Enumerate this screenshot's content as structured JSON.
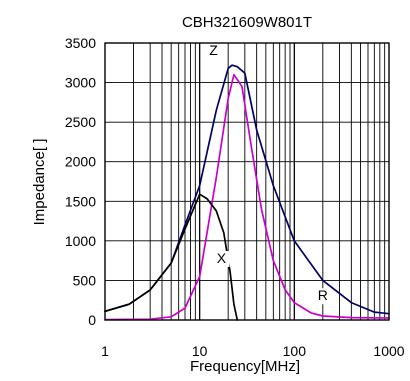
{
  "chart_data": {
    "type": "line",
    "title": "CBH321609W801T",
    "xlabel": "Frequency[MHz]",
    "ylabel": "Impedance[ ]",
    "x_scale": "log",
    "xlim": [
      1,
      1000
    ],
    "ylim": [
      0,
      3500
    ],
    "x_ticks": [
      1,
      10,
      100,
      1000
    ],
    "x_tick_labels": [
      "1",
      "10",
      "100",
      "1000"
    ],
    "y_ticks": [
      0,
      500,
      1000,
      1500,
      2000,
      2500,
      3000,
      3500
    ],
    "y_tick_labels": [
      "0",
      "500",
      "1000",
      "1500",
      "2000",
      "2500",
      "3000",
      "3500"
    ],
    "grid": "vertical log decades, horizontal at y ticks",
    "series": [
      {
        "name": "Z",
        "color": "#000066",
        "x": [
          1,
          1.8,
          3,
          5,
          7,
          10,
          15,
          20,
          22,
          25,
          30,
          40,
          60,
          100,
          200,
          400,
          700,
          1000
        ],
        "y": [
          110,
          200,
          380,
          720,
          1200,
          1700,
          2650,
          3180,
          3220,
          3200,
          3120,
          2400,
          1700,
          1000,
          500,
          220,
          100,
          80
        ]
      },
      {
        "name": "R",
        "color": "#CC00CC",
        "x": [
          1,
          3,
          5,
          7,
          10,
          15,
          20,
          23,
          28,
          35,
          45,
          60,
          80,
          100,
          150,
          200,
          400,
          1000
        ],
        "y": [
          5,
          10,
          40,
          150,
          550,
          1800,
          2800,
          3100,
          2950,
          2200,
          1400,
          750,
          380,
          220,
          90,
          50,
          30,
          25
        ]
      },
      {
        "name": "X",
        "color": "#000000",
        "x": [
          1,
          1.8,
          3,
          5,
          7,
          10,
          12,
          15,
          18,
          21,
          23,
          25
        ],
        "y": [
          110,
          200,
          380,
          720,
          1150,
          1590,
          1530,
          1380,
          1100,
          600,
          200,
          0
        ]
      }
    ]
  }
}
